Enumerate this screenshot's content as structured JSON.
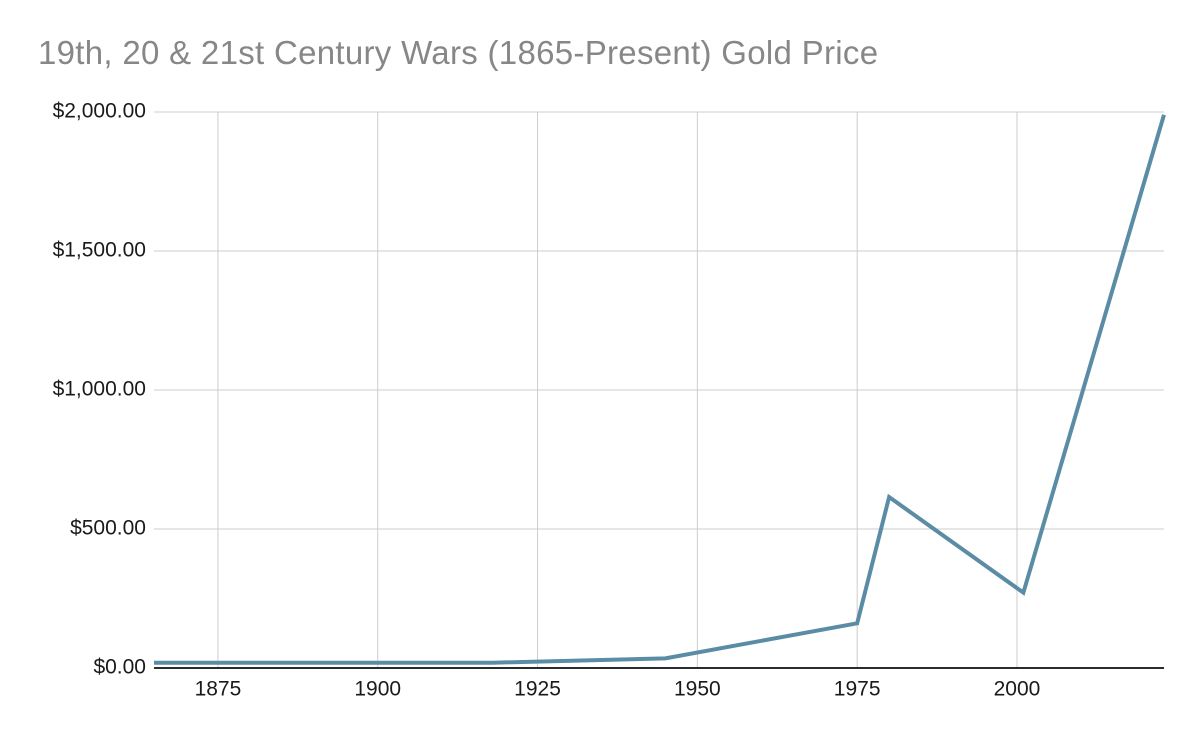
{
  "chart": {
    "title": "19th, 20 & 21st Century Wars (1865-Present) Gold Price"
  },
  "chart_data": {
    "type": "line",
    "title": "19th, 20 & 21st Century Wars (1865-Present) Gold Price",
    "x": [
      1865,
      1898,
      1918,
      1945,
      1975,
      1980,
      2001,
      2023
    ],
    "series": [
      {
        "name": "Gold Price",
        "values": [
          18.93,
          18.98,
          18.99,
          34.71,
          160.86,
          615,
          271,
          1990
        ]
      }
    ],
    "xlabel": "",
    "ylabel": "",
    "xlim": [
      1865,
      2023
    ],
    "ylim": [
      0,
      2000
    ],
    "x_ticks": [
      {
        "label": "1875",
        "value": 1875
      },
      {
        "label": "1900",
        "value": 1900
      },
      {
        "label": "1925",
        "value": 1925
      },
      {
        "label": "1950",
        "value": 1950
      },
      {
        "label": "1975",
        "value": 1975
      },
      {
        "label": "2000",
        "value": 2000
      }
    ],
    "y_ticks": [
      {
        "label": "$2,000.00",
        "value": 2000
      },
      {
        "label": "$1,500.00",
        "value": 1500
      },
      {
        "label": "$1,000.00",
        "value": 1000
      },
      {
        "label": "$500.00",
        "value": 500
      },
      {
        "label": "$0.00",
        "value": 0
      }
    ],
    "grid": true,
    "legend": "none",
    "colors": {
      "line": "#5b8ca6",
      "gridline": "#cccccc",
      "axis_line": "#2b2b2b",
      "title": "#878787",
      "tick_label": "#1a1a1a",
      "background": "#ffffff"
    }
  }
}
